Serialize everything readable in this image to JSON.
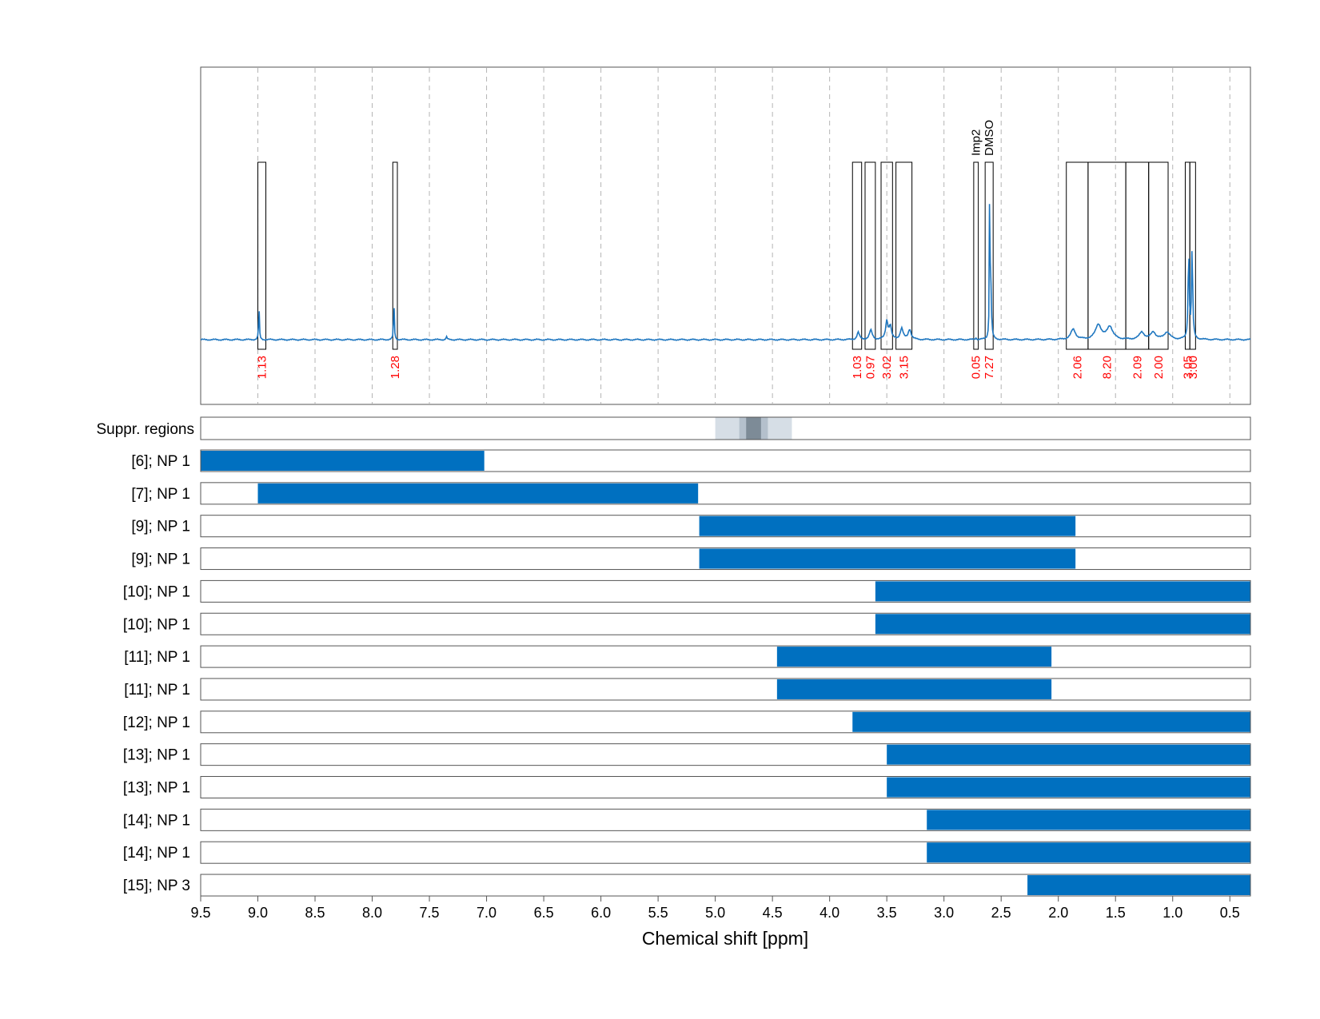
{
  "chart_data": {
    "type": "line",
    "xlabel": "Chemical shift [ppm]",
    "xlim": [
      9.5,
      0.32
    ],
    "x_ticks": [
      "9.5",
      "9.0",
      "8.5",
      "8.0",
      "7.5",
      "7.0",
      "6.5",
      "6.0",
      "5.5",
      "5.0",
      "4.5",
      "4.0",
      "3.5",
      "3.0",
      "2.5",
      "2.0",
      "1.5",
      "1.0",
      "0.5"
    ],
    "grid": true,
    "colors": {
      "spectrum": "#1f77c0",
      "bar": "#0070c0",
      "integral": "#ff0000",
      "suppression_light": "#d6dee6",
      "suppression_mid": "#b4c0cc",
      "suppression_dark": "#7d8b97"
    },
    "spectrum_peaks": [
      {
        "x": 8.99,
        "height": 0.17,
        "width": 0.004
      },
      {
        "x": 7.81,
        "height": 0.2,
        "width": 0.004
      },
      {
        "x": 7.35,
        "height": 0.015,
        "width": 0.006
      },
      {
        "x": 3.75,
        "height": 0.04,
        "width": 0.012
      },
      {
        "x": 3.64,
        "height": 0.05,
        "width": 0.015
      },
      {
        "x": 3.5,
        "height": 0.1,
        "width": 0.012
      },
      {
        "x": 3.47,
        "height": 0.07,
        "width": 0.012
      },
      {
        "x": 3.37,
        "height": 0.06,
        "width": 0.015
      },
      {
        "x": 3.3,
        "height": 0.055,
        "width": 0.015
      },
      {
        "x": 2.72,
        "height": 0.01,
        "width": 0.005
      },
      {
        "x": 2.6,
        "height": 0.95,
        "width": 0.003
      },
      {
        "x": 2.59,
        "height": 0.25,
        "width": 0.006
      },
      {
        "x": 1.87,
        "height": 0.055,
        "width": 0.025
      },
      {
        "x": 1.65,
        "height": 0.08,
        "width": 0.03
      },
      {
        "x": 1.55,
        "height": 0.07,
        "width": 0.03
      },
      {
        "x": 1.27,
        "height": 0.04,
        "width": 0.025
      },
      {
        "x": 1.17,
        "height": 0.04,
        "width": 0.025
      },
      {
        "x": 1.05,
        "height": 0.04,
        "width": 0.03
      },
      {
        "x": 0.86,
        "height": 0.48,
        "width": 0.006
      },
      {
        "x": 0.83,
        "height": 0.48,
        "width": 0.006
      }
    ],
    "integration_regions": [
      {
        "from": 9.0,
        "to": 8.93,
        "integral": "1.13",
        "label": ""
      },
      {
        "from": 7.82,
        "to": 7.78,
        "integral": "1.28",
        "label": ""
      },
      {
        "from": 3.8,
        "to": 3.72,
        "integral": "1.03",
        "label": ""
      },
      {
        "from": 3.69,
        "to": 3.6,
        "integral": "0.97",
        "label": ""
      },
      {
        "from": 3.55,
        "to": 3.45,
        "integral": "3.02",
        "label": ""
      },
      {
        "from": 3.42,
        "to": 3.28,
        "integral": "3.15",
        "label": ""
      },
      {
        "from": 2.74,
        "to": 2.7,
        "integral": "0.05",
        "label": "Imp2"
      },
      {
        "from": 2.64,
        "to": 2.57,
        "integral": "7.27",
        "label": "DMSO"
      },
      {
        "from": 1.93,
        "to": 1.74,
        "integral": "2.06",
        "label": ""
      },
      {
        "from": 1.74,
        "to": 1.41,
        "integral": "8.20",
        "label": ""
      },
      {
        "from": 1.41,
        "to": 1.21,
        "integral": "2.09",
        "label": ""
      },
      {
        "from": 1.21,
        "to": 1.04,
        "integral": "2.00",
        "label": ""
      },
      {
        "from": 0.89,
        "to": 0.85,
        "integral": "3.05",
        "label": ""
      },
      {
        "from": 0.85,
        "to": 0.8,
        "integral": "3.00",
        "label": ""
      }
    ],
    "suppression": {
      "label": "Suppr. regions",
      "bands": [
        {
          "from": 5.0,
          "to": 4.33,
          "shade": "light"
        },
        {
          "from": 4.79,
          "to": 4.54,
          "shade": "mid"
        },
        {
          "from": 4.73,
          "to": 4.6,
          "shade": "dark"
        }
      ]
    },
    "rows": [
      {
        "label": "[6]; NP 1",
        "from": 9.5,
        "to": 7.02
      },
      {
        "label": "[7]; NP 1",
        "from": 9.0,
        "to": 5.15
      },
      {
        "label": "[9]; NP 1",
        "from": 5.14,
        "to": 1.85
      },
      {
        "label": "[9]; NP 1",
        "from": 5.14,
        "to": 1.85
      },
      {
        "label": "[10]; NP 1",
        "from": 3.6,
        "to": 0.32
      },
      {
        "label": "[10]; NP 1",
        "from": 3.6,
        "to": 0.32
      },
      {
        "label": "[11]; NP 1",
        "from": 4.46,
        "to": 2.06
      },
      {
        "label": "[11]; NP 1",
        "from": 4.46,
        "to": 2.06
      },
      {
        "label": "[12]; NP 1",
        "from": 3.8,
        "to": 0.32
      },
      {
        "label": "[13]; NP 1",
        "from": 3.5,
        "to": 0.32
      },
      {
        "label": "[13]; NP 1",
        "from": 3.5,
        "to": 0.32
      },
      {
        "label": "[14]; NP 1",
        "from": 3.15,
        "to": 0.32
      },
      {
        "label": "[14]; NP 1",
        "from": 3.15,
        "to": 0.32
      },
      {
        "label": "[15]; NP 3",
        "from": 2.27,
        "to": 0.32
      }
    ]
  }
}
